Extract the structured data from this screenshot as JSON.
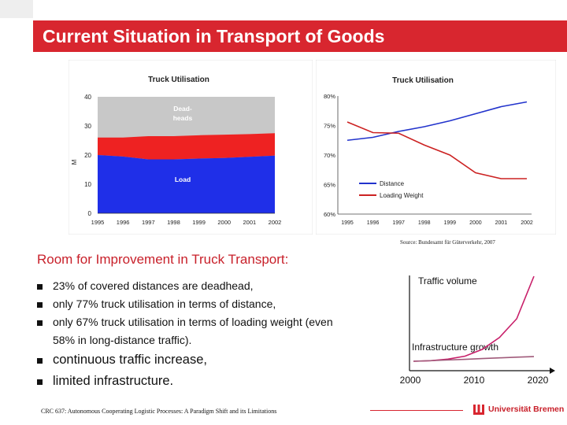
{
  "slide": {
    "title": "Current Situation in Transport of Goods",
    "source": "Source: Bundesamt für Güterverkehr, 2007",
    "heading": "Room for Improvement in Truck Transport",
    "heading_colon": ":",
    "bullets": [
      {
        "text": "23% of covered distances are deadhead,"
      },
      {
        "text": "only 77% truck utilisation in terms of distance,"
      },
      {
        "text": "only 67% truck utilisation in terms of loading weight (even",
        "cont": "58% in long-distance traffic)."
      },
      {
        "text": "continuous traffic increase,"
      },
      {
        "text": "limited infrastructure."
      }
    ],
    "footer": "CRC 637: Autonomous Cooperating Logistic Processes: A Paradigm Shift and its Limitations",
    "logo_text": "Universität Bremen"
  },
  "colors": {
    "accent": "#d8262f",
    "load": "#1f2fe8",
    "deadheads": "#ee2222",
    "distance": "#2233cc",
    "loading_weight": "#cc2222"
  },
  "chart_data": [
    {
      "type": "area",
      "title": "Truck Utilisation",
      "ylabel": "Mio t",
      "ylabel_short": "M",
      "ylim": [
        0,
        40
      ],
      "yticks": [
        "0",
        "10",
        "20",
        "30",
        "40"
      ],
      "categories": [
        "1995",
        "1996",
        "1997",
        "1998",
        "1999",
        "2000",
        "2001",
        "2002"
      ],
      "series": [
        {
          "name": "Load",
          "values": [
            20,
            19.5,
            18.5,
            18.5,
            18.8,
            19,
            19.4,
            19.8
          ]
        },
        {
          "name": "Dead-heads",
          "name_lines": [
            "Dead-",
            "heads"
          ],
          "values": [
            26,
            26,
            26.5,
            26.5,
            26.8,
            27,
            27.2,
            27.5
          ]
        }
      ]
    },
    {
      "type": "line",
      "title": "Truck Utilisation",
      "ylim": [
        60,
        80
      ],
      "yticks": [
        "60%",
        "65%",
        "70%",
        "75%",
        "80%"
      ],
      "categories": [
        "1995",
        "1996",
        "1997",
        "1998",
        "1999",
        "2000",
        "2001",
        "2002"
      ],
      "series": [
        {
          "name": "Distance",
          "values": [
            72.5,
            73,
            74,
            74.8,
            75.8,
            77,
            78.2,
            79
          ]
        },
        {
          "name": "Loading Weight",
          "values": [
            75.6,
            73.8,
            73.7,
            71.7,
            70,
            67,
            66,
            66
          ]
        }
      ]
    },
    {
      "type": "line",
      "x_ticks": [
        "2000",
        "2010",
        "2020"
      ],
      "series": [
        {
          "name": "Traffic volume",
          "values": [
            0,
            0.6,
            2.5,
            6,
            14,
            28,
            50,
            100
          ]
        },
        {
          "name": "Infrastructure growth",
          "values": [
            0,
            0.7,
            1.5,
            2.3,
            3.2,
            4,
            4.8,
            5.5
          ]
        }
      ]
    }
  ]
}
